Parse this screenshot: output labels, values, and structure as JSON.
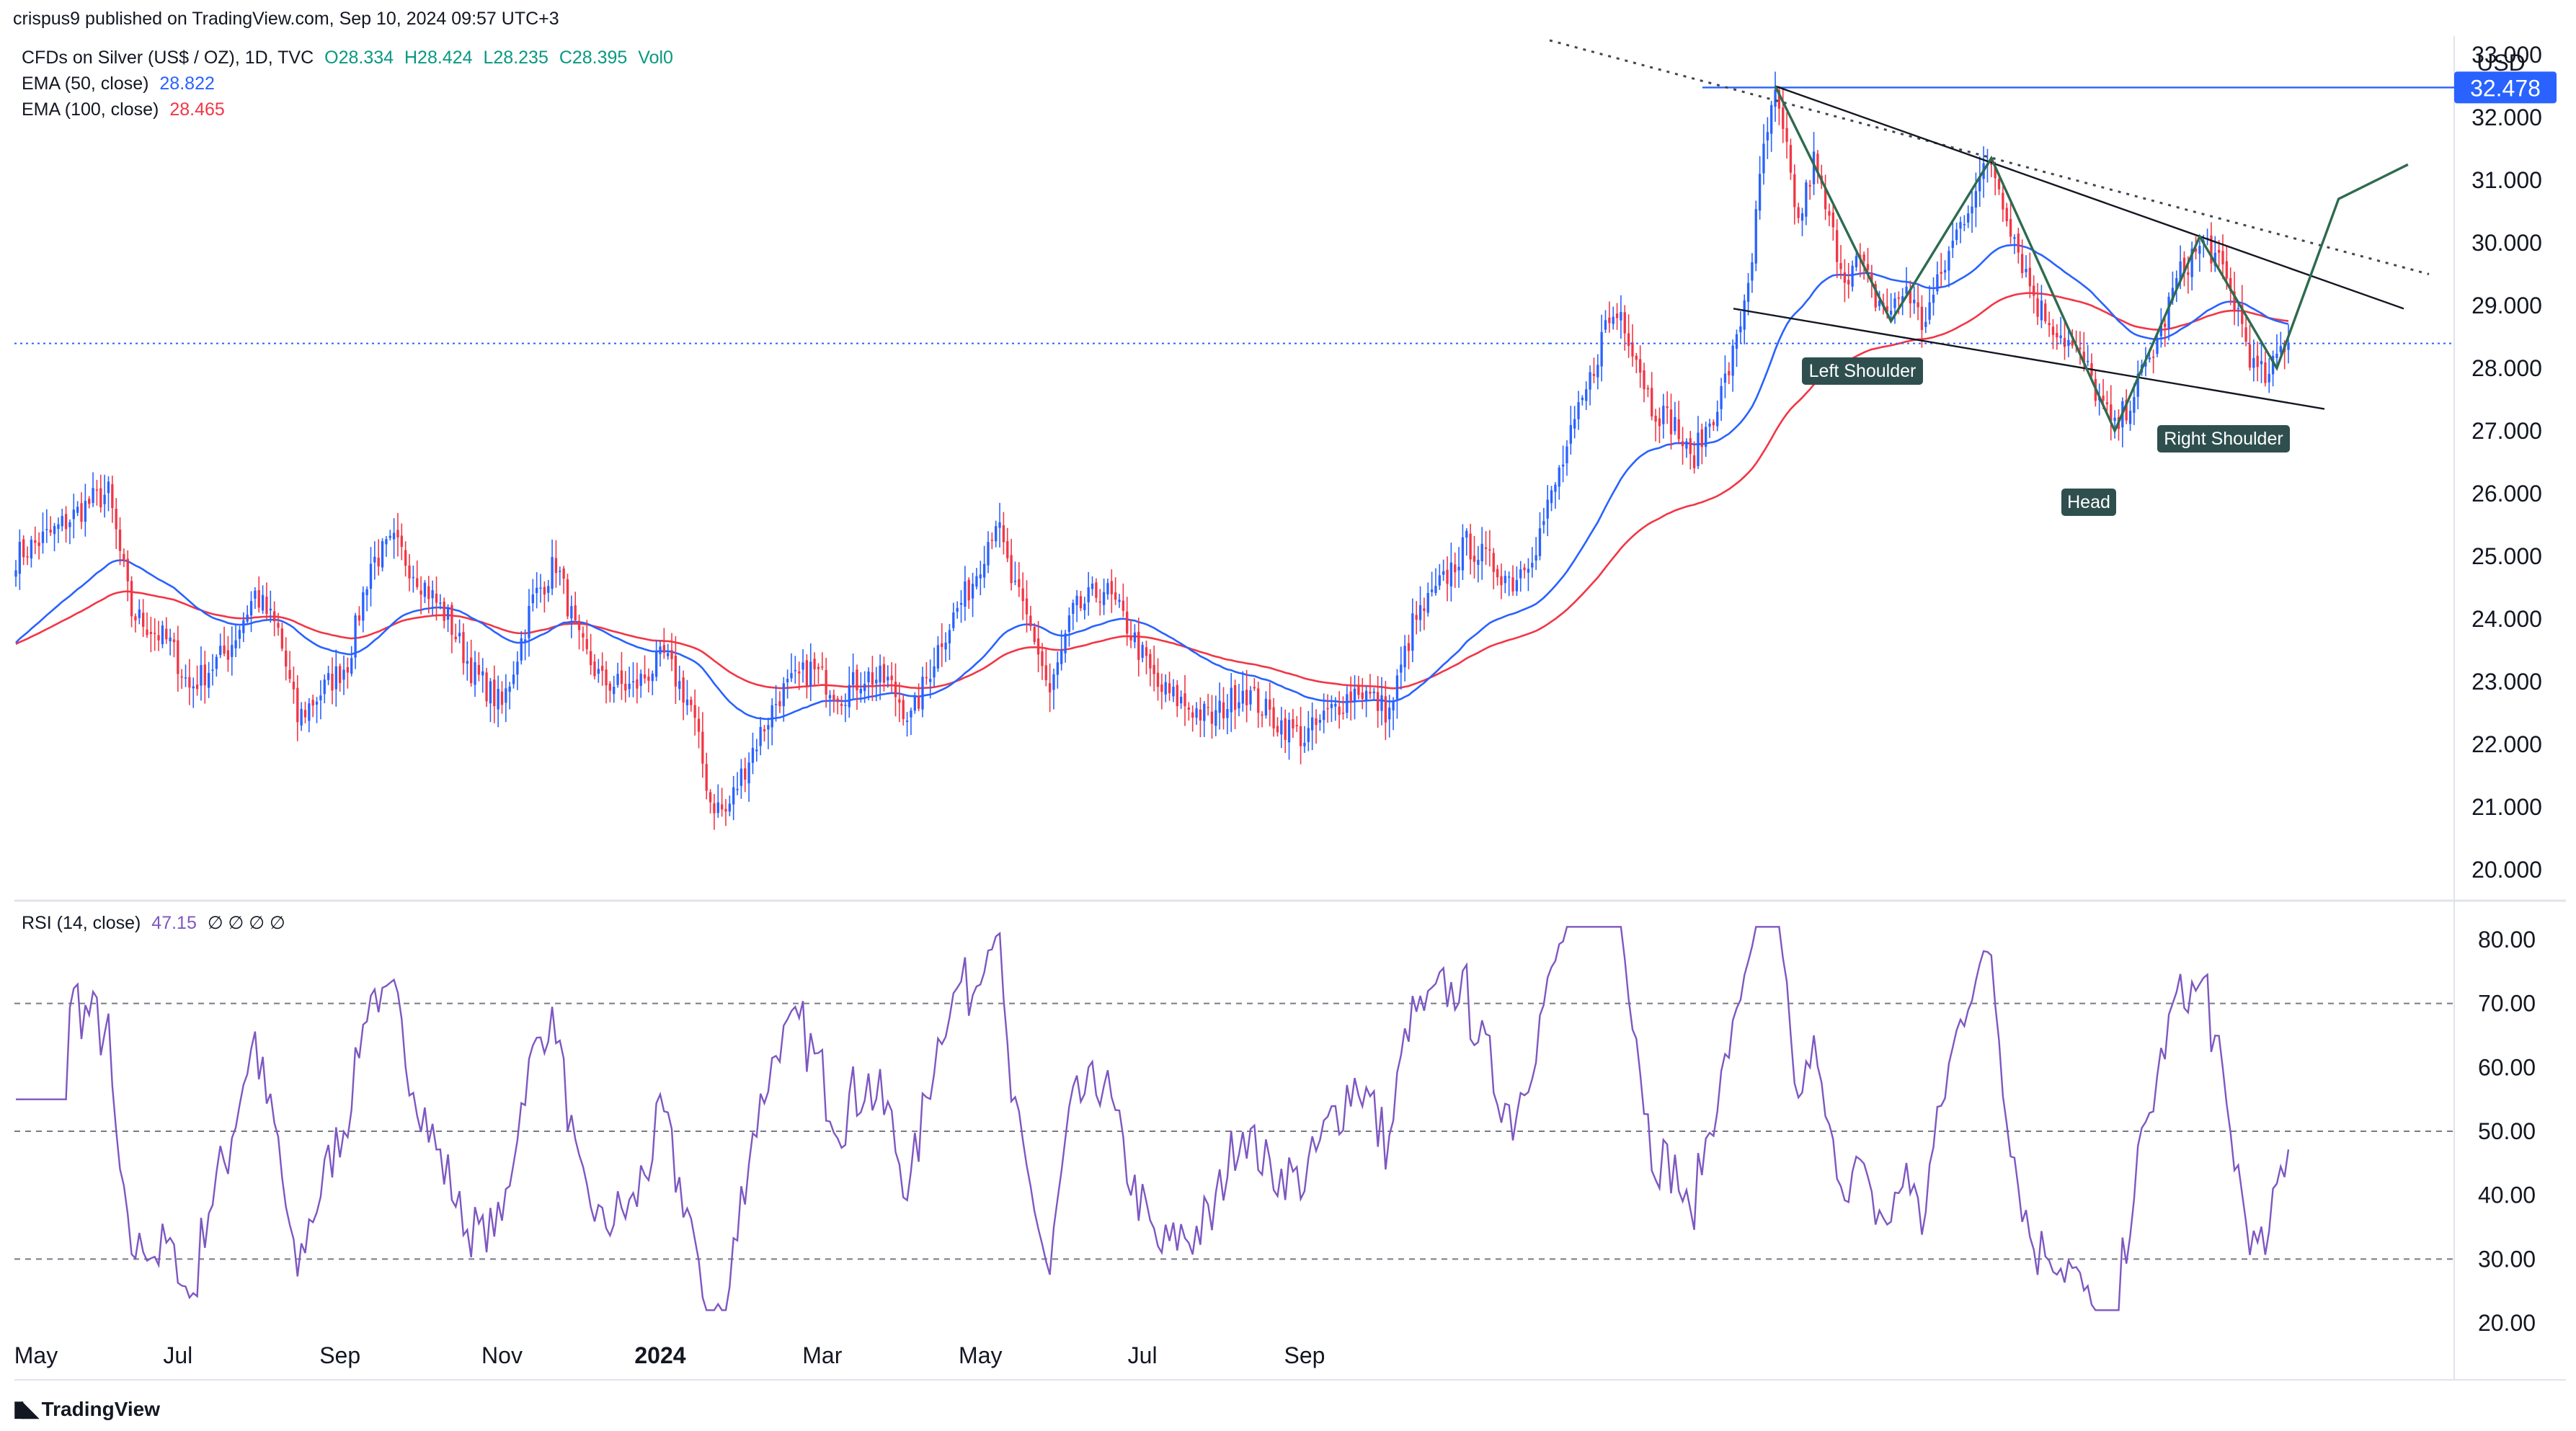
{
  "header": {
    "published": "crispus9 published on TradingView.com, Sep 10, 2024 09:57 UTC+3"
  },
  "legend": {
    "symbol": "CFDs on Silver (US$ / OZ), 1D, TVC",
    "ohlc": [
      "O28.334",
      "H28.424",
      "L28.235",
      "C28.395",
      "Vol0"
    ],
    "ema50_label": "EMA (50, close)",
    "ema50_value": "28.822",
    "ema100_label": "EMA (100, close)",
    "ema100_value": "28.465",
    "rsi_label": "RSI (14, close)",
    "rsi_value": "47.15",
    "rsi_extra": "∅ ∅ ∅ ∅"
  },
  "colors": {
    "up": "#2962ff",
    "down": "#f23645",
    "ema50": "#2962ff",
    "ema100": "#f23645",
    "rsi": "#7e57c2",
    "resistance": "#2962ff",
    "pattern_label_bg": "#2f4f4f",
    "pattern_line": "#2e6b4f"
  },
  "footer": {
    "brand": "TradingView"
  },
  "chart_data": {
    "type": "candlestick",
    "currency": "USD",
    "price_axis": {
      "ticks": [
        "20.000",
        "21.000",
        "22.000",
        "23.000",
        "24.000",
        "25.000",
        "26.000",
        "27.000",
        "28.000",
        "29.000",
        "30.000",
        "31.000",
        "32.000",
        "33.000"
      ],
      "ylim": [
        19.5,
        33.4
      ]
    },
    "current_price": 28.395,
    "resistance_level": {
      "value": 32.478,
      "label": "32.478"
    },
    "x_axis": {
      "ticks": [
        "May",
        "Jul",
        "Sep",
        "Nov",
        "2024",
        "Mar",
        "May",
        "Jul",
        "Sep"
      ]
    },
    "annotations": [
      "Left Shoulder",
      "Head",
      "Right Shoulder"
    ],
    "price_path": [
      [
        0,
        25.0
      ],
      [
        10,
        25.4
      ],
      [
        20,
        25.9
      ],
      [
        24,
        26.0
      ],
      [
        30,
        24.1
      ],
      [
        40,
        23.6
      ],
      [
        45,
        22.9
      ],
      [
        55,
        23.5
      ],
      [
        62,
        24.4
      ],
      [
        68,
        23.8
      ],
      [
        73,
        22.4
      ],
      [
        80,
        22.9
      ],
      [
        86,
        23.3
      ],
      [
        92,
        24.9
      ],
      [
        98,
        25.2
      ],
      [
        104,
        24.7
      ],
      [
        112,
        24.0
      ],
      [
        118,
        23.2
      ],
      [
        126,
        22.6
      ],
      [
        134,
        24.3
      ],
      [
        140,
        24.9
      ],
      [
        146,
        23.6
      ],
      [
        152,
        23.0
      ],
      [
        160,
        22.9
      ],
      [
        168,
        23.4
      ],
      [
        175,
        22.6
      ],
      [
        180,
        21.1
      ],
      [
        184,
        20.9
      ],
      [
        190,
        21.8
      ],
      [
        198,
        22.8
      ],
      [
        206,
        23.2
      ],
      [
        214,
        22.8
      ],
      [
        220,
        23.1
      ],
      [
        226,
        23.0
      ],
      [
        232,
        22.4
      ],
      [
        240,
        23.7
      ],
      [
        248,
        24.6
      ],
      [
        254,
        25.6
      ],
      [
        258,
        24.6
      ],
      [
        264,
        23.7
      ],
      [
        268,
        22.8
      ],
      [
        274,
        24.1
      ],
      [
        282,
        24.5
      ],
      [
        288,
        23.9
      ],
      [
        296,
        22.9
      ],
      [
        304,
        22.6
      ],
      [
        310,
        22.4
      ],
      [
        318,
        22.9
      ],
      [
        326,
        22.4
      ],
      [
        334,
        22.1
      ],
      [
        342,
        22.6
      ],
      [
        348,
        22.9
      ],
      [
        356,
        22.5
      ],
      [
        362,
        23.9
      ],
      [
        370,
        24.6
      ],
      [
        376,
        25.2
      ],
      [
        382,
        24.9
      ],
      [
        388,
        24.6
      ],
      [
        394,
        25.2
      ],
      [
        402,
        26.7
      ],
      [
        408,
        27.8
      ],
      [
        412,
        28.7
      ],
      [
        416,
        28.9
      ],
      [
        420,
        28.2
      ],
      [
        424,
        27.4
      ],
      [
        430,
        27.1
      ],
      [
        434,
        26.5
      ],
      [
        438,
        27.0
      ],
      [
        442,
        27.6
      ],
      [
        446,
        28.4
      ],
      [
        450,
        29.8
      ],
      [
        453,
        31.5
      ],
      [
        456,
        32.3
      ],
      [
        459,
        31.4
      ],
      [
        462,
        30.3
      ],
      [
        466,
        31.3
      ],
      [
        470,
        30.3
      ],
      [
        474,
        29.5
      ],
      [
        478,
        29.7
      ],
      [
        482,
        29.1
      ],
      [
        486,
        28.9
      ],
      [
        490,
        29.3
      ],
      [
        494,
        28.7
      ],
      [
        498,
        29.3
      ],
      [
        502,
        30.0
      ],
      [
        508,
        30.9
      ],
      [
        512,
        31.3
      ],
      [
        516,
        30.5
      ],
      [
        520,
        29.7
      ],
      [
        524,
        29.0
      ],
      [
        528,
        28.7
      ],
      [
        532,
        28.4
      ],
      [
        536,
        28.1
      ],
      [
        540,
        27.5
      ],
      [
        544,
        27.0
      ],
      [
        548,
        27.5
      ],
      [
        552,
        28.0
      ],
      [
        556,
        28.6
      ],
      [
        560,
        29.4
      ],
      [
        564,
        29.8
      ],
      [
        568,
        30.0
      ],
      [
        572,
        29.5
      ],
      [
        576,
        28.9
      ],
      [
        580,
        28.0
      ],
      [
        584,
        27.8
      ],
      [
        586,
        28.2
      ],
      [
        588,
        28.395
      ]
    ]
  }
}
